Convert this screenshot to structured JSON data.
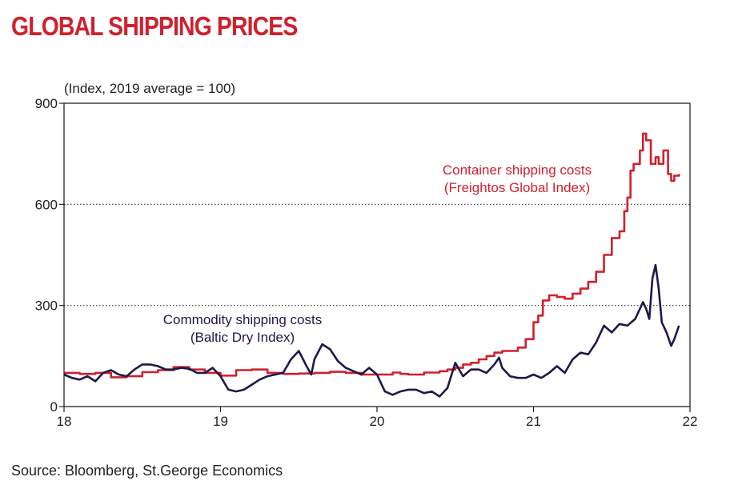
{
  "title": "GLOBAL SHIPPING PRICES",
  "subtitle": "(Index, 2019 average = 100)",
  "source": "Source: Bloomberg, St.George Economics",
  "colors": {
    "title": "#d0202e",
    "container": "#d0202e",
    "commodity": "#1b1a4a",
    "axis": "#222222"
  },
  "chart_data": {
    "type": "line",
    "xlim": [
      18,
      22
    ],
    "ylim": [
      0,
      900
    ],
    "x_ticks": [
      "18",
      "19",
      "20",
      "21",
      "22"
    ],
    "y_ticks": [
      "0",
      "300",
      "600",
      "900"
    ],
    "gridlines_y": [
      300,
      600
    ],
    "grid": "dotted horizontal at 300 and 600",
    "legend": "inline annotations",
    "series": [
      {
        "name": "Container shipping costs (Freightos Global Index)",
        "label_lines": [
          "Container shipping costs",
          "(Freightos Global Index)"
        ],
        "step": true,
        "x": [
          18.0,
          18.1,
          18.2,
          18.3,
          18.4,
          18.5,
          18.6,
          18.7,
          18.8,
          18.9,
          19.0,
          19.1,
          19.2,
          19.3,
          19.4,
          19.5,
          19.6,
          19.7,
          19.8,
          19.9,
          20.0,
          20.1,
          20.15,
          20.2,
          20.3,
          20.4,
          20.45,
          20.5,
          20.55,
          20.6,
          20.65,
          20.7,
          20.75,
          20.8,
          20.85,
          20.9,
          20.95,
          21.0,
          21.03,
          21.06,
          21.1,
          21.15,
          21.2,
          21.25,
          21.3,
          21.35,
          21.4,
          21.45,
          21.5,
          21.55,
          21.58,
          21.6,
          21.62,
          21.64,
          21.66,
          21.68,
          21.7,
          21.72,
          21.75,
          21.78,
          21.8,
          21.83,
          21.86,
          21.88,
          21.9,
          21.93
        ],
        "values": [
          100,
          97,
          100,
          87,
          90,
          102,
          108,
          117,
          110,
          100,
          92,
          108,
          110,
          100,
          97,
          98,
          100,
          103,
          100,
          95,
          95,
          101,
          97,
          95,
          101,
          105,
          110,
          115,
          125,
          130,
          140,
          150,
          160,
          165,
          165,
          175,
          200,
          250,
          270,
          315,
          330,
          325,
          320,
          335,
          350,
          370,
          400,
          450,
          500,
          520,
          580,
          620,
          700,
          720,
          720,
          760,
          810,
          790,
          720,
          740,
          720,
          760,
          690,
          670,
          685,
          690
        ]
      },
      {
        "name": "Commodity shipping costs (Baltic Dry Index)",
        "label_lines": [
          "Commodity shipping costs",
          "(Baltic Dry Index)"
        ],
        "x": [
          18.0,
          18.05,
          18.1,
          18.15,
          18.2,
          18.25,
          18.3,
          18.35,
          18.4,
          18.45,
          18.5,
          18.55,
          18.6,
          18.65,
          18.7,
          18.75,
          18.8,
          18.85,
          18.9,
          18.95,
          19.0,
          19.05,
          19.1,
          19.15,
          19.2,
          19.25,
          19.3,
          19.35,
          19.4,
          19.45,
          19.5,
          19.55,
          19.58,
          19.6,
          19.65,
          19.7,
          19.75,
          19.8,
          19.85,
          19.9,
          19.95,
          20.0,
          20.05,
          20.1,
          20.15,
          20.2,
          20.25,
          20.3,
          20.35,
          20.4,
          20.45,
          20.5,
          20.55,
          20.6,
          20.65,
          20.7,
          20.75,
          20.78,
          20.8,
          20.85,
          20.9,
          20.95,
          21.0,
          21.05,
          21.1,
          21.15,
          21.2,
          21.25,
          21.3,
          21.35,
          21.4,
          21.45,
          21.5,
          21.55,
          21.6,
          21.65,
          21.7,
          21.72,
          21.74,
          21.76,
          21.78,
          21.8,
          21.82,
          21.85,
          21.88,
          21.9,
          21.93
        ],
        "values": [
          95,
          85,
          80,
          90,
          75,
          100,
          108,
          95,
          90,
          110,
          125,
          125,
          120,
          110,
          110,
          115,
          112,
          100,
          100,
          115,
          90,
          50,
          45,
          50,
          65,
          80,
          90,
          95,
          100,
          140,
          165,
          120,
          95,
          140,
          185,
          170,
          135,
          115,
          105,
          95,
          115,
          95,
          45,
          35,
          45,
          50,
          50,
          40,
          45,
          30,
          55,
          130,
          90,
          110,
          110,
          100,
          125,
          145,
          115,
          90,
          85,
          85,
          95,
          85,
          100,
          120,
          100,
          140,
          160,
          155,
          190,
          240,
          220,
          245,
          240,
          260,
          310,
          290,
          260,
          380,
          420,
          350,
          250,
          220,
          180,
          200,
          240
        ]
      }
    ]
  }
}
